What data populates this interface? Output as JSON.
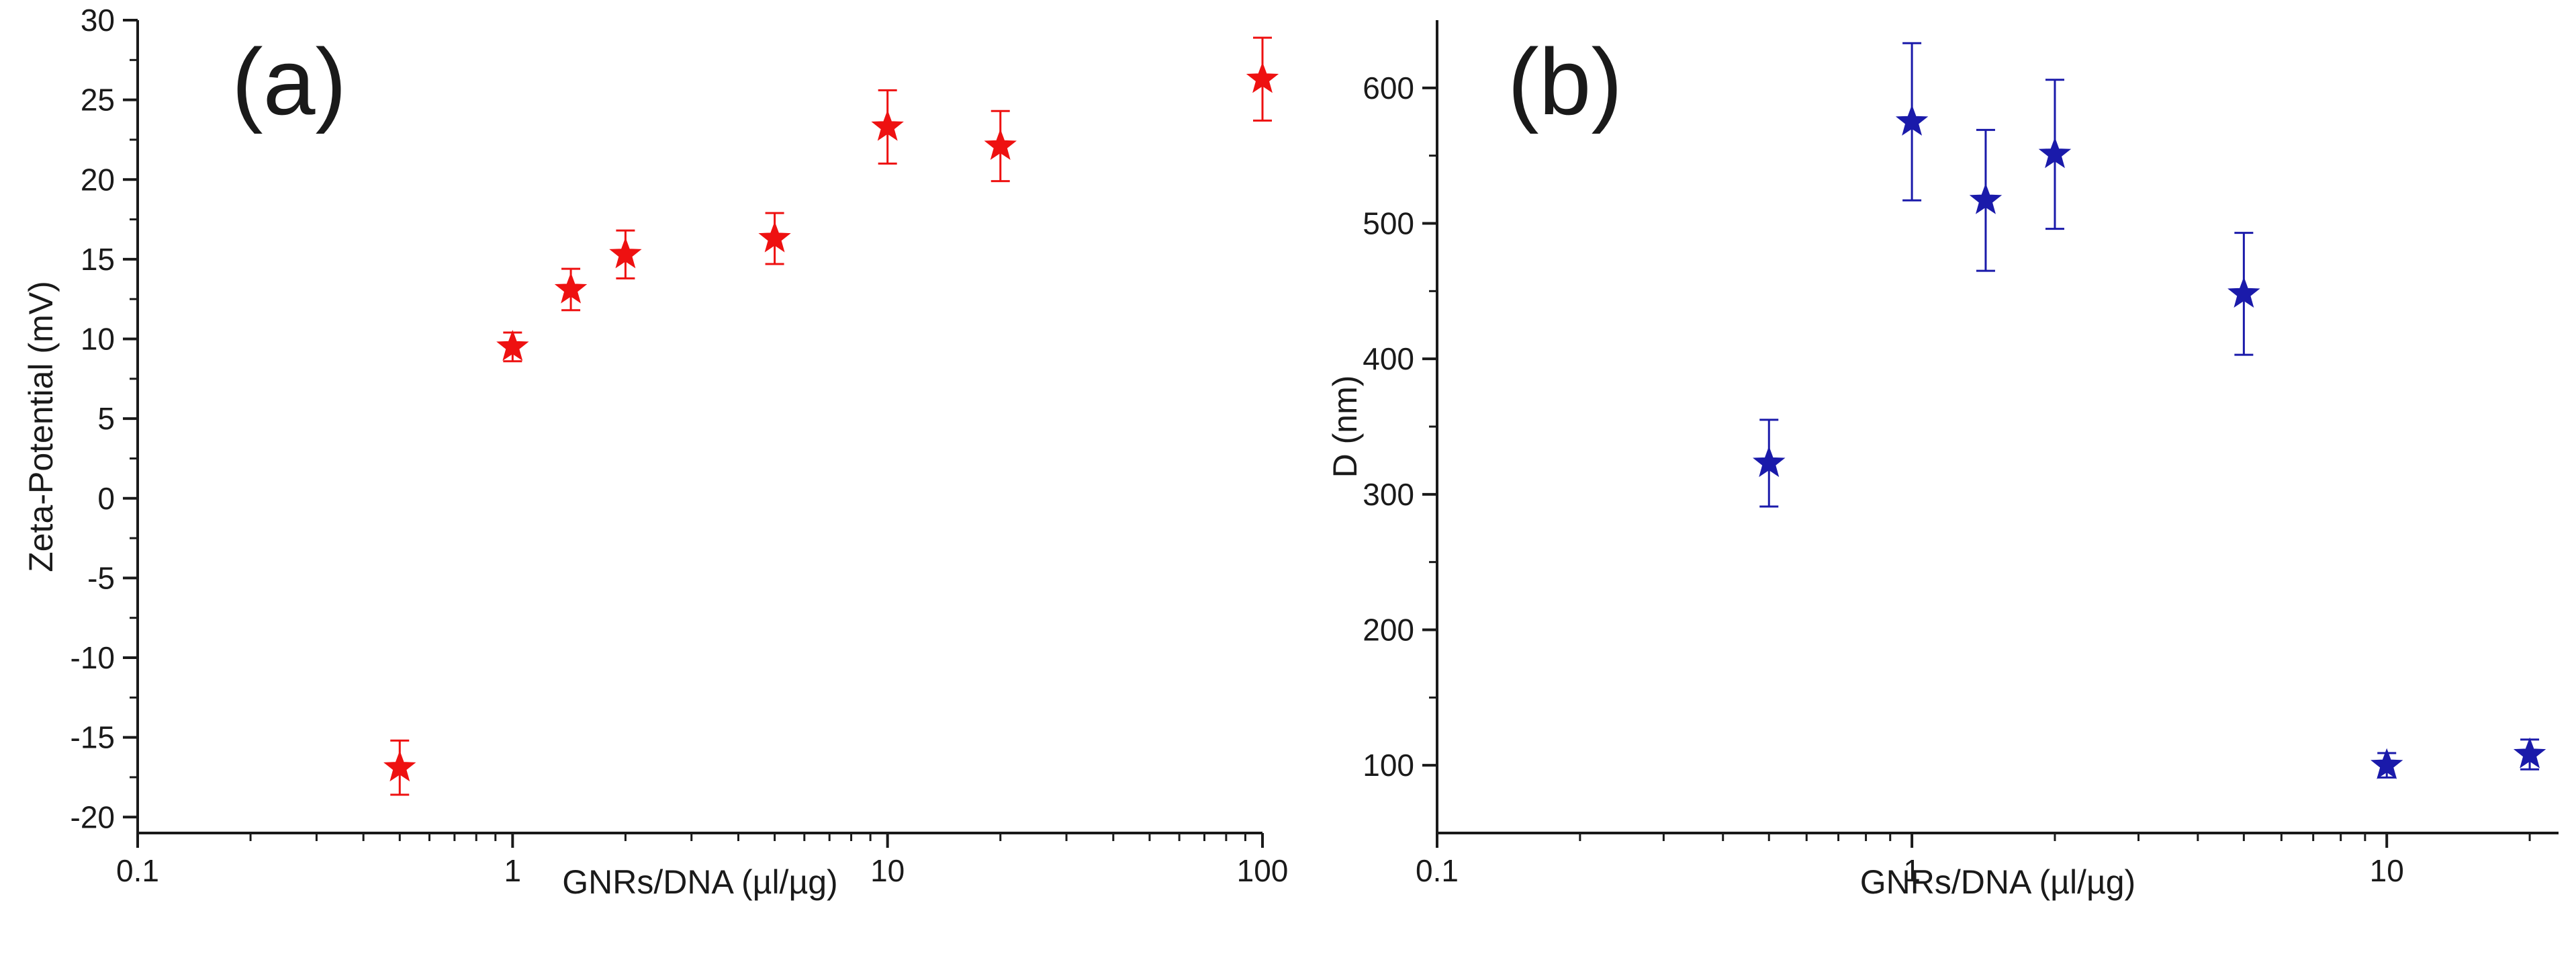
{
  "chart_data": [
    {
      "type": "scatter",
      "panel_label": "(a)",
      "xlabel": "GNRs/DNA (µl/µg)",
      "ylabel": "Zeta-Potential (mV)",
      "x_scale": "log",
      "xlim": [
        0.1,
        100
      ],
      "ylim": [
        -21,
        30
      ],
      "x_ticks": [
        0.1,
        1,
        10,
        100
      ],
      "x_tick_labels": [
        "0.1",
        "1",
        "10",
        "100"
      ],
      "y_ticks": [
        -20,
        -15,
        -10,
        -5,
        0,
        5,
        10,
        15,
        20,
        25,
        30
      ],
      "y_tick_labels": [
        "-20",
        "-15",
        "-10",
        "-5",
        "0",
        "5",
        "10",
        "15",
        "20",
        "25",
        "30"
      ],
      "marker": "star",
      "color": "#ee1111",
      "grid": false,
      "x": [
        0.5,
        1,
        1.43,
        2,
        5,
        10,
        20,
        100
      ],
      "y": [
        -16.9,
        9.5,
        13.1,
        15.3,
        16.3,
        23.3,
        22.1,
        26.3
      ],
      "error": [
        1.7,
        0.9,
        1.3,
        1.5,
        1.6,
        2.3,
        2.2,
        2.6
      ]
    },
    {
      "type": "scatter",
      "panel_label": "(b)",
      "xlabel": "GNRs/DNA (µl/µg)",
      "ylabel": "D (nm)",
      "x_scale": "log",
      "xlim": [
        0.1,
        23
      ],
      "ylim": [
        50,
        650
      ],
      "x_ticks": [
        0.1,
        1,
        10
      ],
      "x_tick_labels": [
        "0.1",
        "1",
        "10"
      ],
      "y_ticks": [
        100,
        200,
        300,
        400,
        500,
        600
      ],
      "y_tick_labels": [
        "100",
        "200",
        "300",
        "400",
        "500",
        "600"
      ],
      "marker": "star",
      "color": "#1a1aaa",
      "grid": false,
      "x": [
        0.5,
        1,
        1.43,
        2,
        5,
        10,
        20
      ],
      "y": [
        323,
        575,
        517,
        551,
        448,
        100,
        108
      ],
      "error": [
        32,
        58,
        52,
        55,
        45,
        9,
        11
      ]
    }
  ]
}
